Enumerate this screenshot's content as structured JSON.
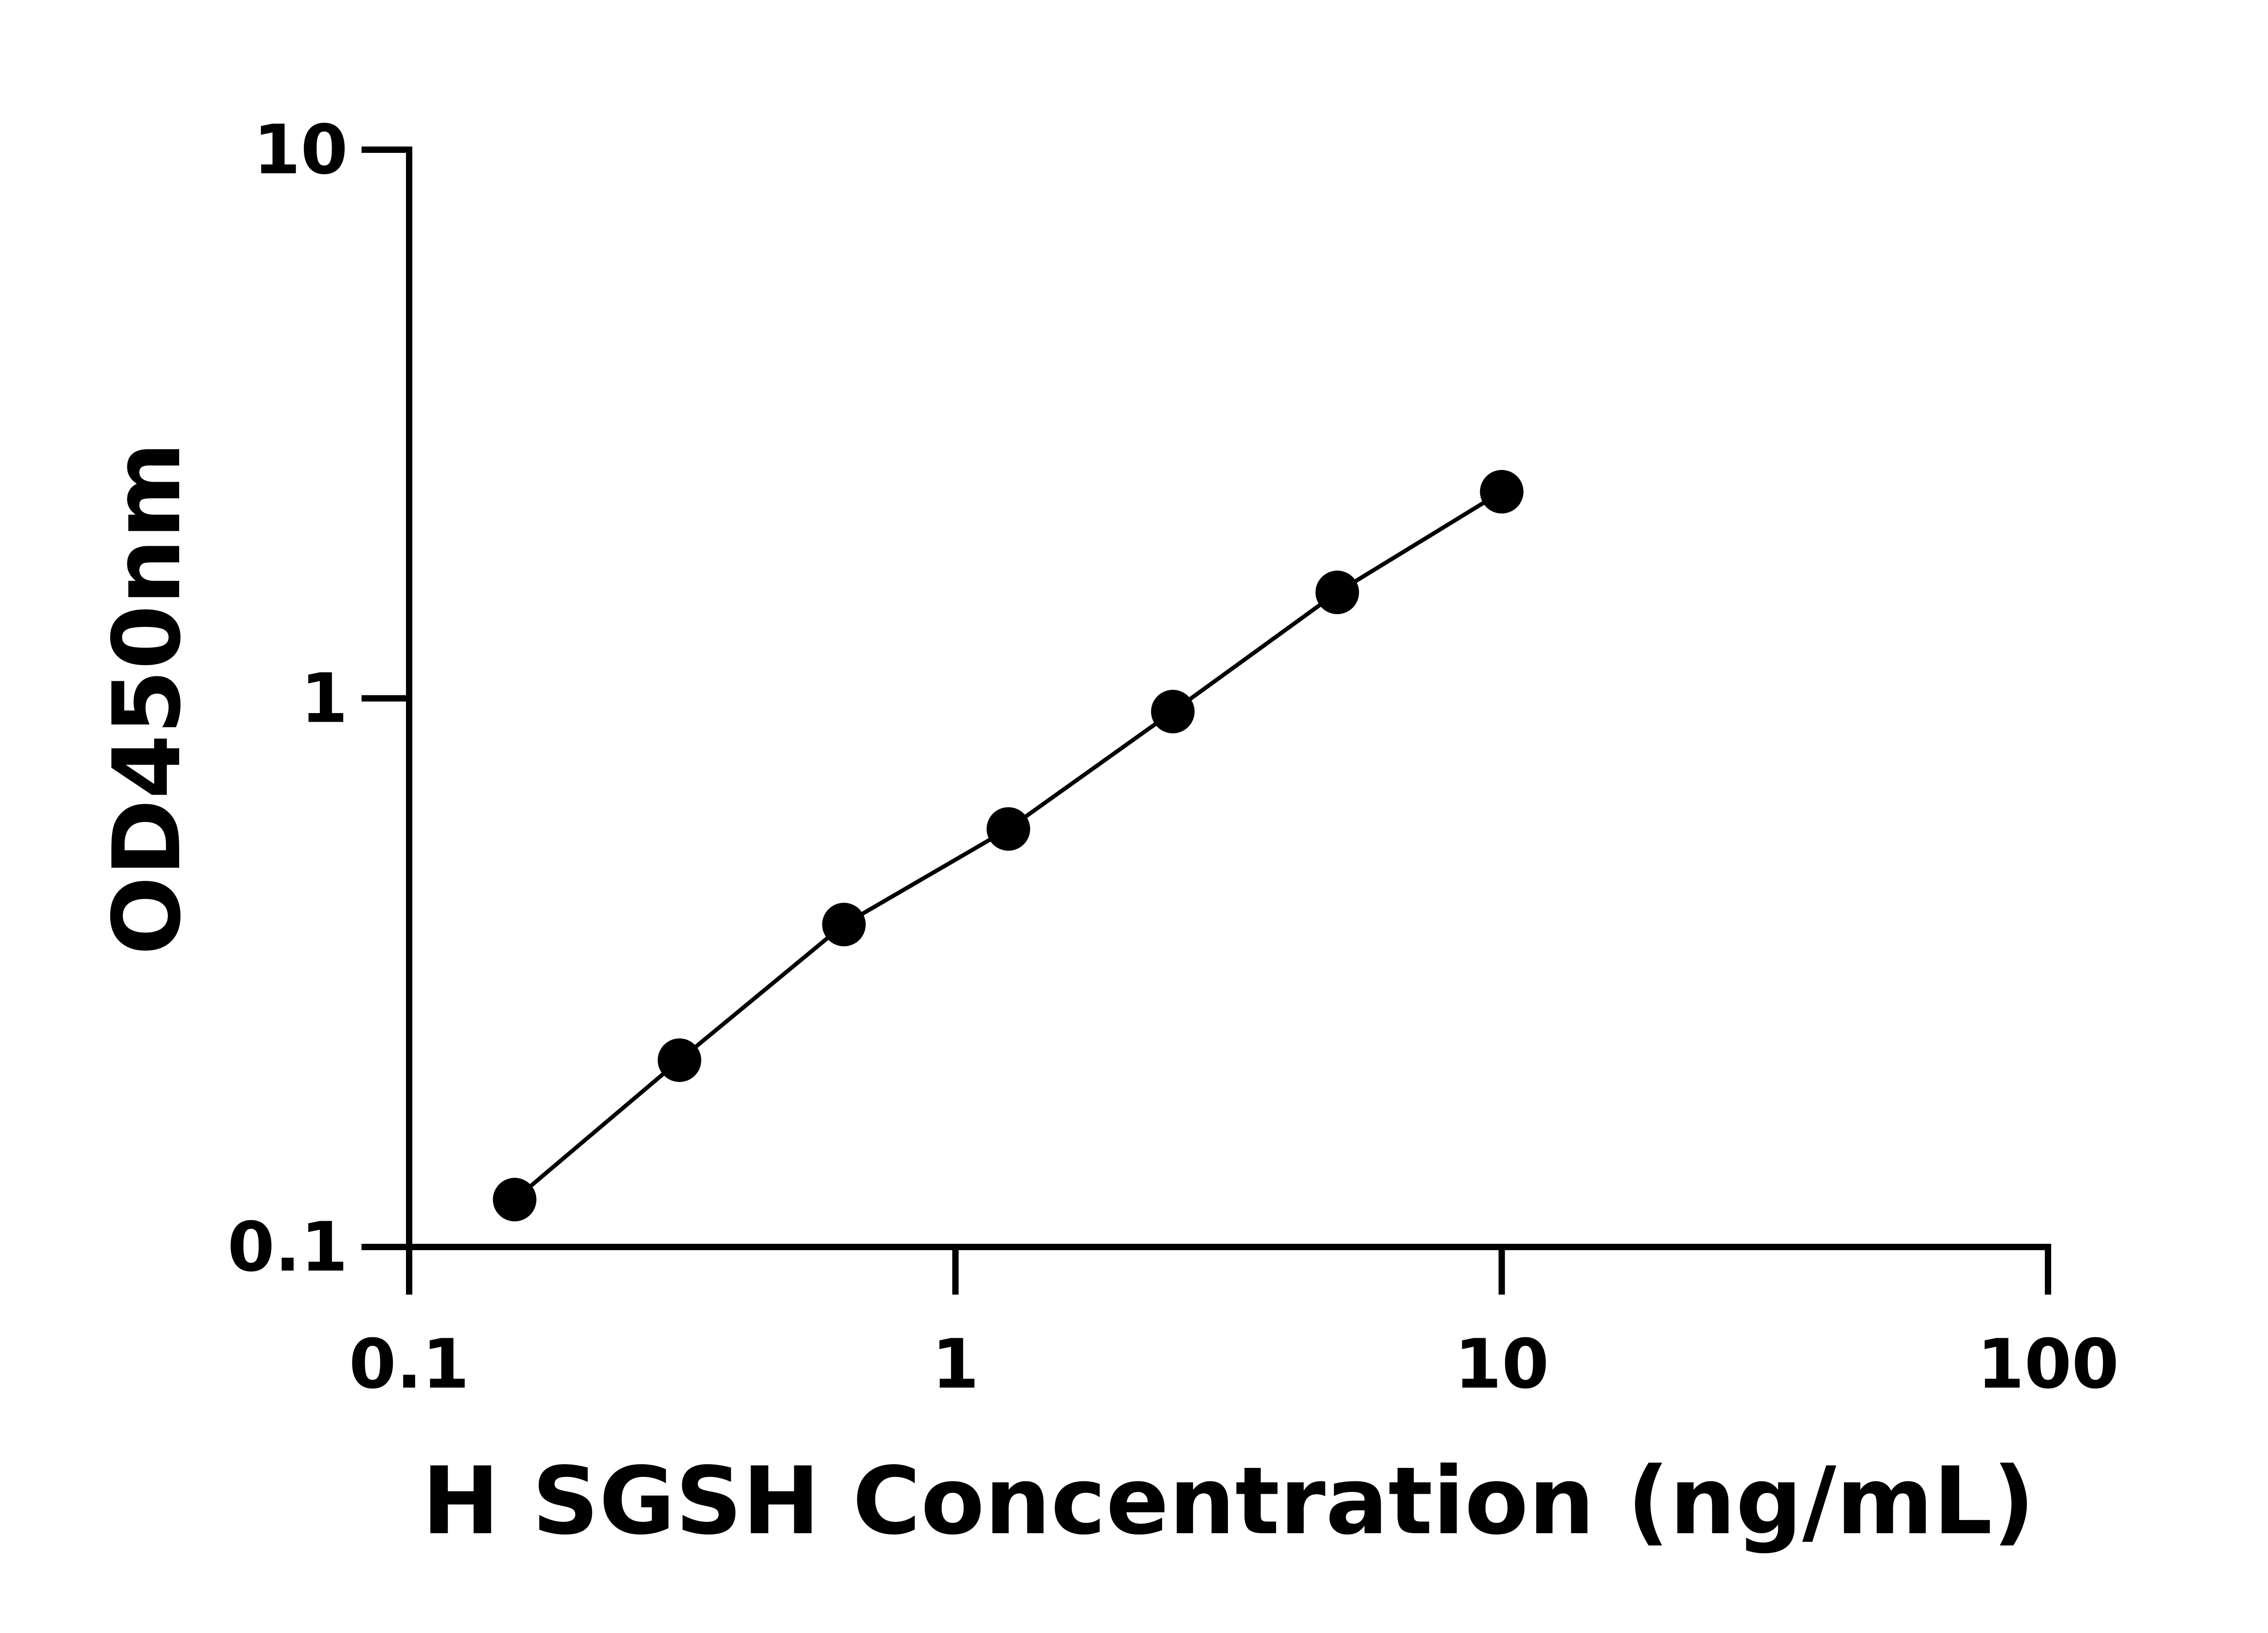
{
  "chart_data": {
    "type": "line",
    "title": "",
    "xlabel": "H SGSH Concentration (ng/mL)",
    "ylabel": "OD450nm",
    "xscale": "log",
    "yscale": "log",
    "xlim": [
      0.1,
      100
    ],
    "ylim": [
      0.1,
      10
    ],
    "xticks": [
      "0.1",
      "1",
      "10",
      "100"
    ],
    "yticks": [
      "0.1",
      "1",
      "10"
    ],
    "grid": false,
    "legend": "none",
    "series": [
      {
        "x": [
          0.156,
          0.3125,
          0.625,
          1.25,
          2.5,
          5,
          10
        ],
        "y": [
          0.122,
          0.219,
          0.387,
          0.578,
          0.946,
          1.56,
          2.38
        ],
        "color": "#000000",
        "marker": "circle"
      }
    ]
  }
}
